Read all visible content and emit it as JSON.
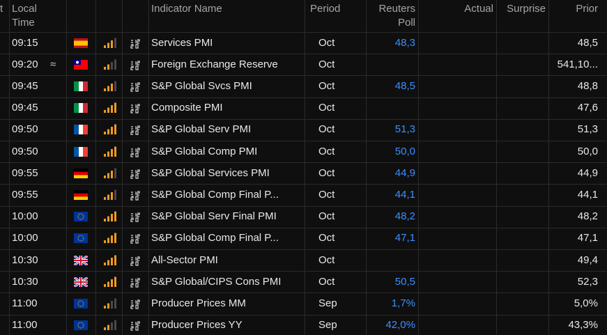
{
  "table": {
    "headers": {
      "cut": "t",
      "time": [
        "Local",
        "Time"
      ],
      "name": "Indicator Name",
      "period": "Period",
      "poll": [
        "Reuters",
        "Poll"
      ],
      "actual": "Actual",
      "surprise": "Surprise",
      "prior": "Prior"
    },
    "rows": [
      {
        "time": "09:15",
        "name": "Services PMI",
        "period": "Oct",
        "poll": "48,3",
        "prior": "48,5"
      },
      {
        "time": "09:20",
        "marker": "≈",
        "name": "Foreign Exchange Reserve",
        "period": "Oct",
        "prior": "541,10..."
      },
      {
        "time": "09:45",
        "name": "S&P Global Svcs PMI",
        "period": "Oct",
        "poll": "48,5",
        "prior": "48,8"
      },
      {
        "time": "09:45",
        "name": "Composite PMI",
        "period": "Oct",
        "prior": "47,6"
      },
      {
        "time": "09:50",
        "name": "S&P Global Serv PMI",
        "period": "Oct",
        "poll": "51,3",
        "prior": "51,3"
      },
      {
        "time": "09:50",
        "name": "S&P Global Comp PMI",
        "period": "Oct",
        "poll": "50,0",
        "prior": "50,0"
      },
      {
        "time": "09:55",
        "name": "S&P Global Services PMI",
        "period": "Oct",
        "poll": "44,9",
        "prior": "44,9"
      },
      {
        "time": "09:55",
        "name": "S&P Global Comp Final P...",
        "period": "Oct",
        "poll": "44,1",
        "prior": "44,1"
      },
      {
        "time": "10:00",
        "name": "S&P Global Serv Final PMI",
        "period": "Oct",
        "poll": "48,2",
        "prior": "48,2"
      },
      {
        "time": "10:00",
        "name": "S&P Global Comp Final P...",
        "period": "Oct",
        "poll": "47,1",
        "prior": "47,1"
      },
      {
        "time": "10:30",
        "name": "All-Sector PMI",
        "period": "Oct",
        "prior": "49,4"
      },
      {
        "time": "10:30",
        "name": "S&P Global/CIPS Cons PMI",
        "period": "Oct",
        "poll": "50,5",
        "prior": "52,3"
      },
      {
        "time": "11:00",
        "name": "Producer Prices MM",
        "period": "Sep",
        "poll": "1,7%",
        "prior": "5,0%"
      },
      {
        "time": "11:00",
        "name": "Producer Prices YY",
        "period": "Sep",
        "poll": "42,0%",
        "prior": "43,3%"
      }
    ]
  }
}
